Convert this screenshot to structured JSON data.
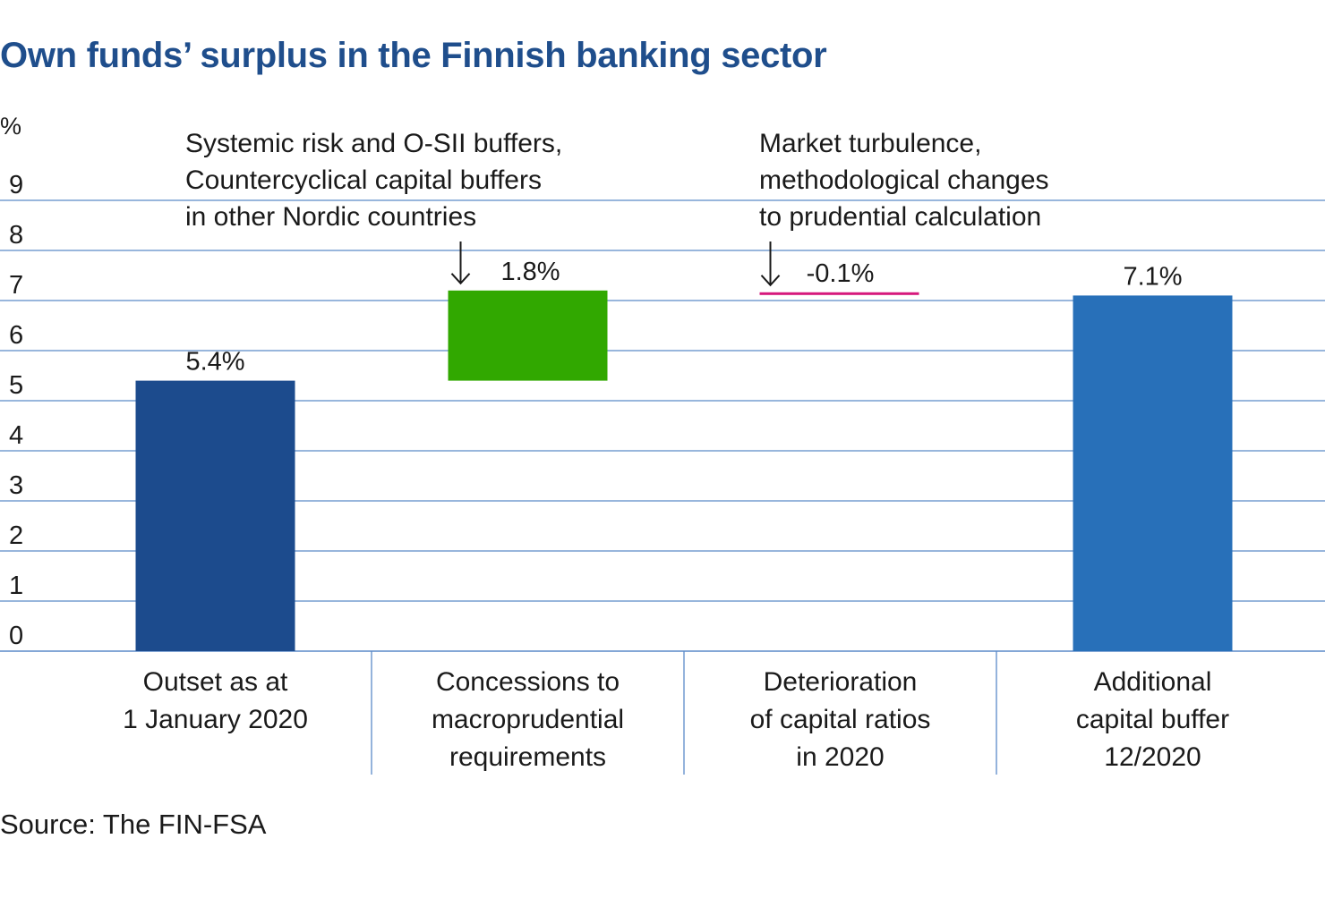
{
  "title": "Own funds’ surplus in the Finnish banking sector",
  "source": "Source: The FIN-FSA",
  "colors": {
    "title": "#1f4e8c",
    "grid": "#5b8ac8",
    "outset": "#1c4b8d",
    "concession": "#31a800",
    "deterioration": "#d6197d",
    "total": "#2870b9"
  },
  "chart_data": {
    "type": "bar",
    "subtype": "waterfall",
    "ylabel": "%",
    "ylim": [
      0,
      9
    ],
    "yticks": [
      "0",
      "1",
      "2",
      "3",
      "4",
      "5",
      "6",
      "7",
      "8",
      "9"
    ],
    "grid": true,
    "categories": [
      [
        "Outset as at",
        "1 January 2020"
      ],
      [
        "Concessions to",
        "macroprudential",
        "requirements"
      ],
      [
        "Deterioration",
        "of capital ratios",
        "in 2020"
      ],
      [
        "Additional",
        "capital buffer",
        "12/2020"
      ]
    ],
    "bars": [
      {
        "base": 0,
        "value": 5.4,
        "label": "5.4%",
        "color_key": "outset"
      },
      {
        "base": 5.4,
        "value": 1.8,
        "label": "1.8%",
        "color_key": "concession"
      },
      {
        "base": 7.2,
        "value": -0.1,
        "label": "-0.1%",
        "color_key": "deterioration"
      },
      {
        "base": 0,
        "value": 7.1,
        "label": "7.1%",
        "color_key": "total"
      }
    ],
    "annotations": [
      {
        "category_index": 1,
        "lines": [
          "Systemic risk and O-SII buffers,",
          "Countercyclical capital buffers",
          "in other Nordic countries"
        ]
      },
      {
        "category_index": 2,
        "lines": [
          "Market turbulence,",
          "methodological changes",
          "to prudential calculation"
        ]
      }
    ]
  }
}
